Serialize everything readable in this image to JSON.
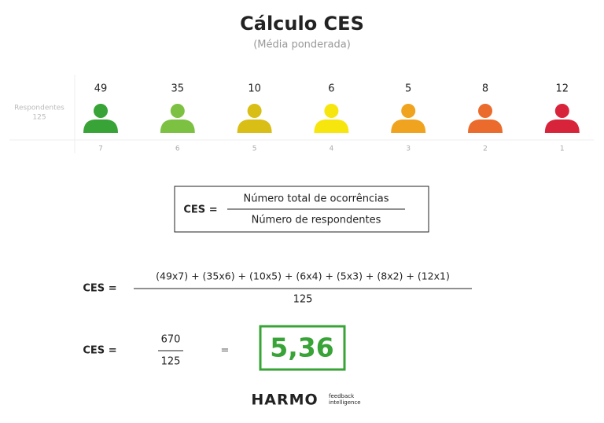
{
  "header": {
    "title": "Cálculo CES",
    "subtitle": "(Média ponderada)"
  },
  "respondents": {
    "label": "Respondentes",
    "total": "125",
    "groups": [
      {
        "count": "49",
        "score": "7",
        "color": "#38a336"
      },
      {
        "count": "35",
        "score": "6",
        "color": "#7dc143"
      },
      {
        "count": "10",
        "score": "5",
        "color": "#d9be16"
      },
      {
        "count": "6",
        "score": "4",
        "color": "#f6e60d"
      },
      {
        "count": "5",
        "score": "3",
        "color": "#f0a31f"
      },
      {
        "count": "8",
        "score": "2",
        "color": "#ea6b2b"
      },
      {
        "count": "12",
        "score": "1",
        "color": "#d8243b"
      }
    ]
  },
  "definition": {
    "label": "CES =",
    "numerator": "Número total de ocorrências",
    "denominator": "Número de respondentes"
  },
  "expansion": {
    "label": "CES =",
    "numerator": "(49x7) + (35x6) + (10x5) + (6x4) + (5x3) + (8x2) + (12x1)",
    "denominator": "125"
  },
  "result": {
    "label": "CES =",
    "numerator": "670",
    "denominator": "125",
    "equals": "=",
    "value": "5,36"
  },
  "logo": {
    "brand": "HARMO",
    "line1": "feedback",
    "line2": "intelligence"
  }
}
